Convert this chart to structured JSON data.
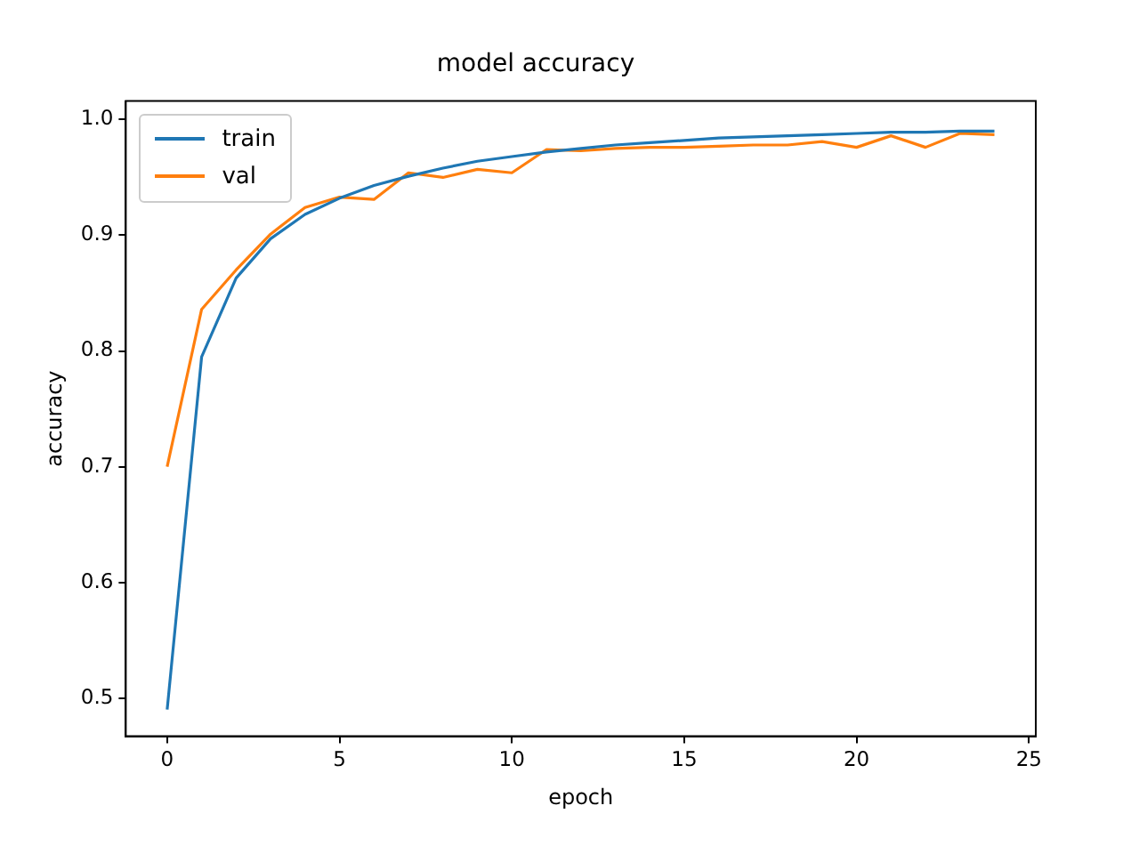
{
  "chart_data": {
    "type": "line",
    "title": "model accuracy",
    "xlabel": "epoch",
    "ylabel": "accuracy",
    "x": [
      0,
      1,
      2,
      3,
      4,
      5,
      6,
      7,
      8,
      9,
      10,
      11,
      12,
      13,
      14,
      15,
      16,
      17,
      18,
      19,
      20,
      21,
      22,
      23,
      24
    ],
    "series": [
      {
        "name": "train",
        "color": "#1f77b4",
        "values": [
          0.49,
          0.795,
          0.863,
          0.897,
          0.918,
          0.932,
          0.943,
          0.951,
          0.958,
          0.964,
          0.968,
          0.972,
          0.975,
          0.978,
          0.98,
          0.982,
          0.984,
          0.985,
          0.986,
          0.987,
          0.988,
          0.989,
          0.989,
          0.99,
          0.99
        ]
      },
      {
        "name": "val",
        "color": "#ff7f0e",
        "values": [
          0.7,
          0.836,
          0.87,
          0.901,
          0.924,
          0.933,
          0.931,
          0.954,
          0.95,
          0.957,
          0.954,
          0.974,
          0.973,
          0.975,
          0.976,
          0.976,
          0.977,
          0.978,
          0.978,
          0.981,
          0.976,
          0.986,
          0.976,
          0.988,
          0.987
        ]
      }
    ],
    "xlim": [
      -1.2,
      25.2
    ],
    "xticks": [
      0,
      5,
      10,
      15,
      20,
      25
    ],
    "ylim": [
      0.467,
      1.016
    ],
    "yticks": [
      0.5,
      0.6,
      0.7,
      0.8,
      0.9,
      {
        "value": 1,
        "label": "1.0"
      }
    ],
    "grid": false,
    "legend": "top left",
    "marker": "none",
    "line_style": "solid"
  }
}
